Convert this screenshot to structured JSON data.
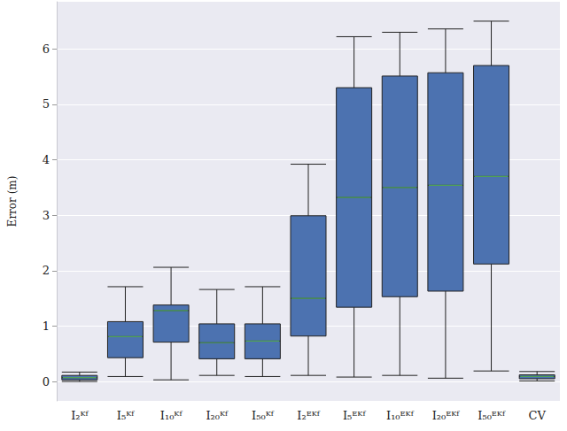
{
  "chart_data": {
    "type": "boxplot",
    "ylabel": "Error (m)",
    "categories": [
      "I₂ᴷᶠ",
      "I₅ᴷᶠ",
      "I₁₀ᴷᶠ",
      "I₂₀ᴷᶠ",
      "I₅₀ᴷᶠ",
      "I₂ᴱᴷᶠ",
      "I₅ᴱᴷᶠ",
      "I₁₀ᴱᴷᶠ",
      "I₂₀ᴱᴷᶠ",
      "I₅₀ᴱᴷᶠ",
      "CV"
    ],
    "values": [
      [
        0.0,
        0.03,
        0.07,
        0.11,
        0.17
      ],
      [
        0.09,
        0.43,
        0.81,
        1.08,
        1.71
      ],
      [
        0.03,
        0.71,
        1.28,
        1.38,
        2.06
      ],
      [
        0.11,
        0.41,
        0.7,
        1.04,
        1.66
      ],
      [
        0.09,
        0.41,
        0.73,
        1.04,
        1.71
      ],
      [
        0.11,
        0.82,
        1.5,
        2.99,
        3.92
      ],
      [
        0.08,
        1.34,
        3.32,
        5.3,
        6.22
      ],
      [
        0.11,
        1.53,
        3.5,
        5.51,
        6.3
      ],
      [
        0.06,
        1.63,
        3.54,
        5.57,
        6.36
      ],
      [
        0.19,
        2.12,
        3.7,
        5.7,
        6.5
      ],
      [
        0.01,
        0.05,
        0.09,
        0.12,
        0.18
      ]
    ],
    "color": "#4c72b0",
    "ylim": [
      -0.35,
      6.85
    ],
    "yticks": [
      0,
      1,
      2,
      3,
      4,
      5,
      6
    ],
    "grid": true
  }
}
